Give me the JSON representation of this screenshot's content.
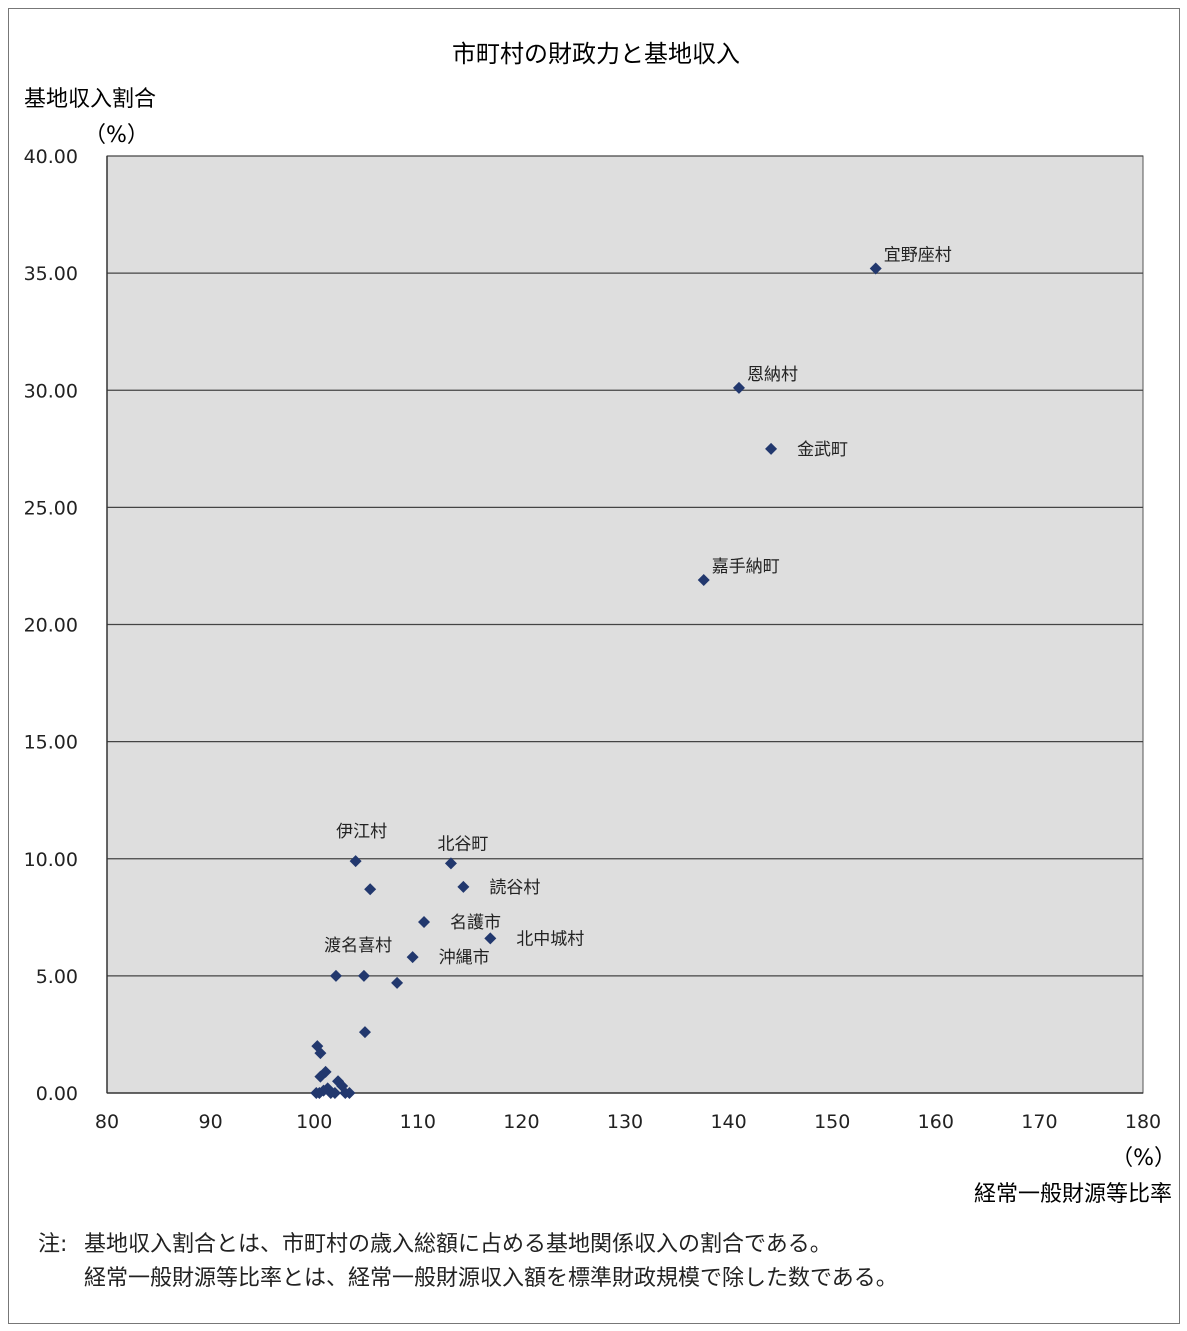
{
  "chart_data": {
    "type": "scatter",
    "title": "市町村の財政力と基地収入",
    "ylabel": "基地収入割合",
    "yunit": "（%）",
    "xlabel": "経常一般財源等比率",
    "xunit": "（%）",
    "xlim": [
      80,
      180
    ],
    "ylim": [
      0,
      40
    ],
    "x_ticks": [
      "80",
      "90",
      "100",
      "110",
      "120",
      "130",
      "140",
      "150",
      "160",
      "170",
      "180"
    ],
    "y_ticks": [
      "0.00",
      "5.00",
      "10.00",
      "15.00",
      "20.00",
      "25.00",
      "30.00",
      "35.00",
      "40.00"
    ],
    "grid": true,
    "marker_color": "#22386e",
    "plot_background": "#dedede",
    "points": [
      {
        "x": 154.2,
        "y": 35.2,
        "label": "宜野座村",
        "label_pos": "top-right"
      },
      {
        "x": 141.0,
        "y": 30.1,
        "label": "恩納村",
        "label_pos": "top-right"
      },
      {
        "x": 144.1,
        "y": 27.5,
        "label": "金武町",
        "label_pos": "right"
      },
      {
        "x": 137.6,
        "y": 21.9,
        "label": "嘉手納町",
        "label_pos": "top-right"
      },
      {
        "x": 104.0,
        "y": 9.9,
        "label": "伊江村",
        "label_pos": "top-left"
      },
      {
        "x": 113.2,
        "y": 9.8,
        "label": "北谷町",
        "label_pos": "top"
      },
      {
        "x": 114.4,
        "y": 8.8,
        "label": "読谷村",
        "label_pos": "right"
      },
      {
        "x": 105.4,
        "y": 8.7,
        "label": "渡名喜村",
        "label_pos": "bottom-left"
      },
      {
        "x": 110.6,
        "y": 7.3,
        "label": "名護市",
        "label_pos": "right"
      },
      {
        "x": 117.0,
        "y": 6.6,
        "label": "北中城村",
        "label_pos": "right"
      },
      {
        "x": 109.5,
        "y": 5.8,
        "label": "沖縄市",
        "label_pos": "right"
      },
      {
        "x": 102.1,
        "y": 5.0,
        "label": ""
      },
      {
        "x": 104.8,
        "y": 5.0,
        "label": ""
      },
      {
        "x": 108.0,
        "y": 4.7,
        "label": ""
      },
      {
        "x": 104.9,
        "y": 2.6,
        "label": ""
      },
      {
        "x": 100.3,
        "y": 2.0,
        "label": ""
      },
      {
        "x": 100.6,
        "y": 1.7,
        "label": ""
      },
      {
        "x": 101.1,
        "y": 0.9,
        "label": ""
      },
      {
        "x": 100.6,
        "y": 0.7,
        "label": ""
      },
      {
        "x": 102.3,
        "y": 0.5,
        "label": ""
      },
      {
        "x": 102.7,
        "y": 0.3,
        "label": ""
      },
      {
        "x": 101.3,
        "y": 0.2,
        "label": ""
      },
      {
        "x": 100.9,
        "y": 0.1,
        "label": ""
      },
      {
        "x": 100.2,
        "y": 0.0,
        "label": ""
      },
      {
        "x": 100.5,
        "y": 0.0,
        "label": ""
      },
      {
        "x": 101.6,
        "y": 0.0,
        "label": ""
      },
      {
        "x": 102.0,
        "y": 0.0,
        "label": ""
      },
      {
        "x": 103.0,
        "y": 0.0,
        "label": ""
      },
      {
        "x": 103.4,
        "y": 0.0,
        "label": ""
      }
    ]
  },
  "notes": {
    "prefix": "注:",
    "line1": "基地収入割合とは、市町村の歳入総額に占める基地関係収入の割合である。",
    "line2": "経常一般財源等比率とは、経常一般財源収入額を標準財政規模で除した数である。"
  }
}
